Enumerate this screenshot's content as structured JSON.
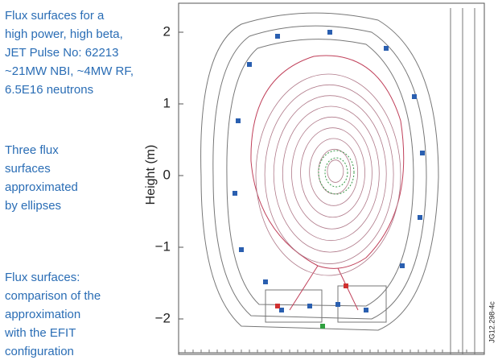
{
  "notes": [
    [
      "Flux surfaces for a",
      "high power, high beta,",
      "JET Pulse No: 62213",
      "~21MW NBI, ~4MW RF,",
      "6.5E16 neutrons"
    ],
    [
      "Three flux",
      "surfaces",
      "approximated",
      "by ellipses"
    ],
    [
      "Flux surfaces:",
      "comparison of the",
      "approximation",
      "with the EFIT",
      "configuration"
    ]
  ],
  "y_axis_label": "Height (m)",
  "y_ticks": [
    "2",
    "1",
    "0",
    "−1",
    "−2"
  ],
  "figure_id": "JG12.298-4c"
}
